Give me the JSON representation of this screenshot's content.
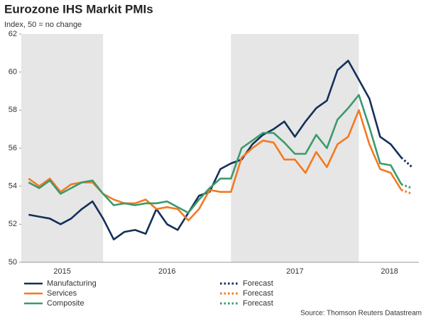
{
  "chart_data": {
    "type": "line",
    "title": "Eurozone IHS Markit PMIs",
    "subtitle": "Index, 50 = no change",
    "source": "Source: Thomson Reuters Datastream",
    "xlim": [
      2015.36,
      2018.47
    ],
    "xticks": [
      {
        "value": 2015.68,
        "label": "2015"
      },
      {
        "value": 2016.5,
        "label": "2016"
      },
      {
        "value": 2017.5,
        "label": "2017"
      },
      {
        "value": 2018.24,
        "label": "2018"
      }
    ],
    "ylim": [
      50,
      62
    ],
    "yticks": [
      50,
      52,
      54,
      56,
      58,
      60,
      62
    ],
    "shaded_ranges": [
      [
        2015.36,
        2016
      ],
      [
        2017,
        2018
      ]
    ],
    "series": [
      {
        "name": "Manufacturing",
        "color": "#13305a",
        "style": "solid",
        "x": [
          2015.417,
          2015.5,
          2015.583,
          2015.667,
          2015.75,
          2015.833,
          2015.917,
          2016,
          2016.083,
          2016.167,
          2016.25,
          2016.333,
          2016.417,
          2016.5,
          2016.583,
          2016.667,
          2016.75,
          2016.833,
          2016.917,
          2017,
          2017.083,
          2017.167,
          2017.25,
          2017.333,
          2017.417,
          2017.5,
          2017.583,
          2017.667,
          2017.75,
          2017.833,
          2017.917,
          2018,
          2018.083,
          2018.167,
          2018.25,
          2018.333
        ],
        "values": [
          52.5,
          52.4,
          52.3,
          52.0,
          52.3,
          52.8,
          53.2,
          52.3,
          51.2,
          51.6,
          51.7,
          51.5,
          52.8,
          52.0,
          51.7,
          52.6,
          53.5,
          53.7,
          54.9,
          55.2,
          55.4,
          56.2,
          56.7,
          57.0,
          57.4,
          56.6,
          57.4,
          58.1,
          58.5,
          60.1,
          60.6,
          59.6,
          58.6,
          56.6,
          56.2,
          55.5
        ]
      },
      {
        "name": "Services",
        "color": "#f47920",
        "style": "solid",
        "x": [
          2015.417,
          2015.5,
          2015.583,
          2015.667,
          2015.75,
          2015.833,
          2015.917,
          2016,
          2016.083,
          2016.167,
          2016.25,
          2016.333,
          2016.417,
          2016.5,
          2016.583,
          2016.667,
          2016.75,
          2016.833,
          2016.917,
          2017,
          2017.083,
          2017.167,
          2017.25,
          2017.333,
          2017.417,
          2017.5,
          2017.583,
          2017.667,
          2017.75,
          2017.833,
          2017.917,
          2018,
          2018.083,
          2018.167,
          2018.25,
          2018.333
        ],
        "values": [
          54.4,
          54.0,
          54.4,
          53.7,
          54.1,
          54.2,
          54.2,
          53.6,
          53.3,
          53.1,
          53.1,
          53.3,
          52.8,
          52.9,
          52.8,
          52.2,
          52.8,
          53.8,
          53.7,
          53.7,
          55.5,
          56.0,
          56.4,
          56.3,
          55.4,
          55.4,
          54.7,
          55.8,
          55.0,
          56.2,
          56.6,
          58.0,
          56.2,
          54.9,
          54.7,
          53.8
        ]
      },
      {
        "name": "Composite",
        "color": "#3b9a6c",
        "style": "solid",
        "x": [
          2015.417,
          2015.5,
          2015.583,
          2015.667,
          2015.75,
          2015.833,
          2015.917,
          2016,
          2016.083,
          2016.167,
          2016.25,
          2016.333,
          2016.417,
          2016.5,
          2016.583,
          2016.667,
          2016.75,
          2016.833,
          2016.917,
          2017,
          2017.083,
          2017.167,
          2017.25,
          2017.333,
          2017.417,
          2017.5,
          2017.583,
          2017.667,
          2017.75,
          2017.833,
          2017.917,
          2018,
          2018.083,
          2018.167,
          2018.25,
          2018.333
        ],
        "values": [
          54.2,
          53.9,
          54.3,
          53.6,
          53.9,
          54.2,
          54.3,
          53.6,
          53.0,
          53.1,
          53.0,
          53.1,
          53.1,
          53.2,
          52.9,
          52.6,
          53.3,
          53.9,
          54.4,
          54.4,
          56.0,
          56.4,
          56.8,
          56.8,
          56.3,
          55.7,
          55.7,
          56.7,
          56.0,
          57.5,
          58.1,
          58.8,
          57.1,
          55.2,
          55.1,
          54.1
        ]
      },
      {
        "name": "Forecast",
        "color": "#13305a",
        "style": "dotted",
        "x": [
          2018.333,
          2018.417
        ],
        "values": [
          55.5,
          55.0
        ]
      },
      {
        "name": "Forecast",
        "color": "#f47920",
        "style": "dotted",
        "x": [
          2018.333,
          2018.417
        ],
        "values": [
          53.8,
          53.6
        ]
      },
      {
        "name": "Forecast",
        "color": "#3b9a6c",
        "style": "dotted",
        "x": [
          2018.333,
          2018.417
        ],
        "values": [
          54.1,
          53.9
        ]
      }
    ]
  }
}
